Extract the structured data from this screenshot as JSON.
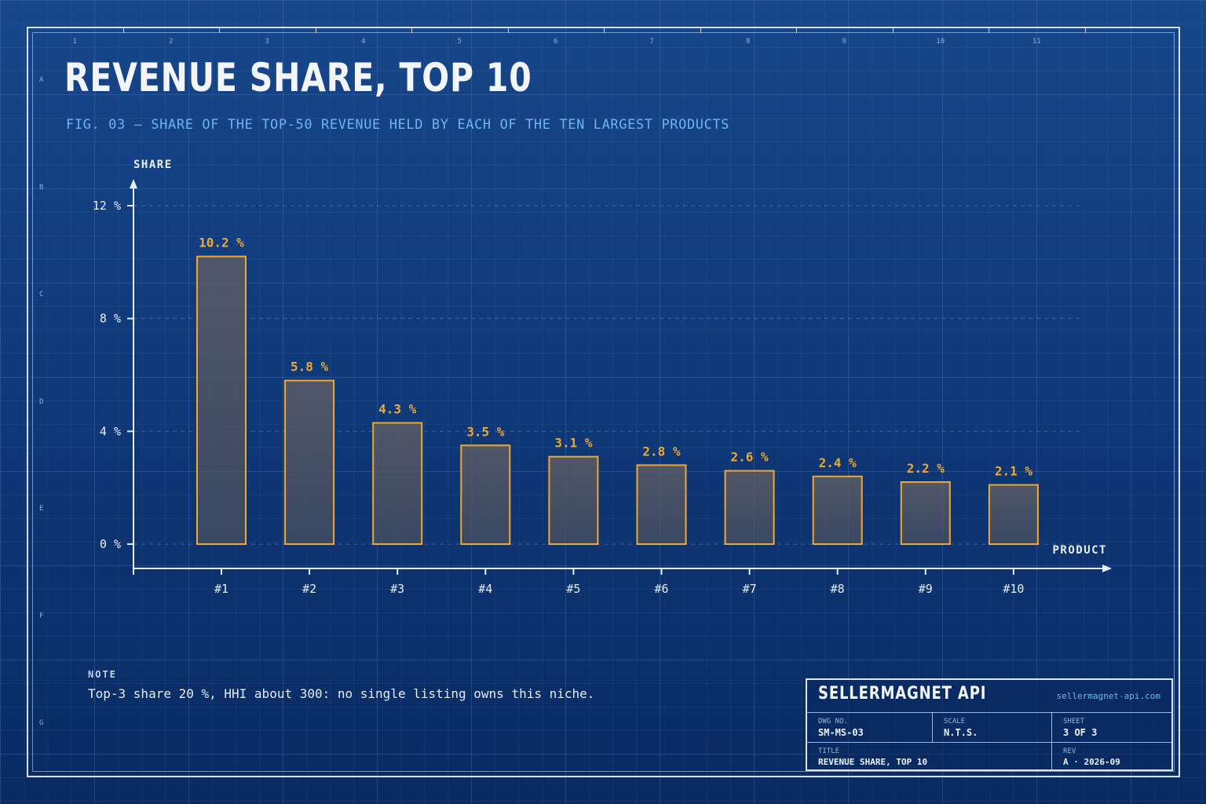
{
  "header": {
    "title": "REVENUE SHARE, TOP 10",
    "subtitle": "FIG. 03  —  SHARE OF THE TOP-50 REVENUE HELD BY EACH OF THE TEN LARGEST PRODUCTS"
  },
  "frame": {
    "columns": [
      "1",
      "2",
      "3",
      "4",
      "5",
      "6",
      "7",
      "8",
      "9",
      "10",
      "11"
    ],
    "rows": [
      "A",
      "B",
      "C",
      "D",
      "E",
      "F",
      "G"
    ]
  },
  "chart_data": {
    "type": "bar",
    "title": "REVENUE SHARE, TOP 10",
    "xlabel": "PRODUCT",
    "ylabel": "SHARE",
    "categories": [
      "#1",
      "#2",
      "#3",
      "#4",
      "#5",
      "#6",
      "#7",
      "#8",
      "#9",
      "#10"
    ],
    "values": [
      10.2,
      5.8,
      4.3,
      3.5,
      3.1,
      2.8,
      2.6,
      2.4,
      2.2,
      2.1
    ],
    "value_labels": [
      "10.2 %",
      "5.8 %",
      "4.3 %",
      "3.5 %",
      "3.1 %",
      "2.8 %",
      "2.6 %",
      "2.4 %",
      "2.2 %",
      "2.1 %"
    ],
    "yticks": [
      0,
      4,
      8,
      12
    ],
    "ytick_labels": [
      "0 %",
      "4 %",
      "8 %",
      "12 %"
    ],
    "ylim": [
      0,
      12
    ],
    "grid": true,
    "colors": {
      "bar_stroke": "#f0a830",
      "bar_fill": "#5a5a66",
      "label": "#f0a830",
      "axis": "#e8eef7"
    }
  },
  "note": {
    "heading": "NOTE",
    "text": "Top-3 share 20 %, HHI about 300: no single listing owns this niche."
  },
  "title_block": {
    "brand": "SELLERMAGNET API",
    "url": "sellermagnet-api.com",
    "dwg_no_label": "DWG NO.",
    "dwg_no": "SM-MS-03",
    "scale_label": "SCALE",
    "scale": "N.T.S.",
    "sheet_label": "SHEET",
    "sheet": "3 OF 3",
    "title_label": "TITLE",
    "title": "REVENUE SHARE, TOP 10",
    "rev_label": "REV",
    "rev": "A · 2026-09"
  }
}
